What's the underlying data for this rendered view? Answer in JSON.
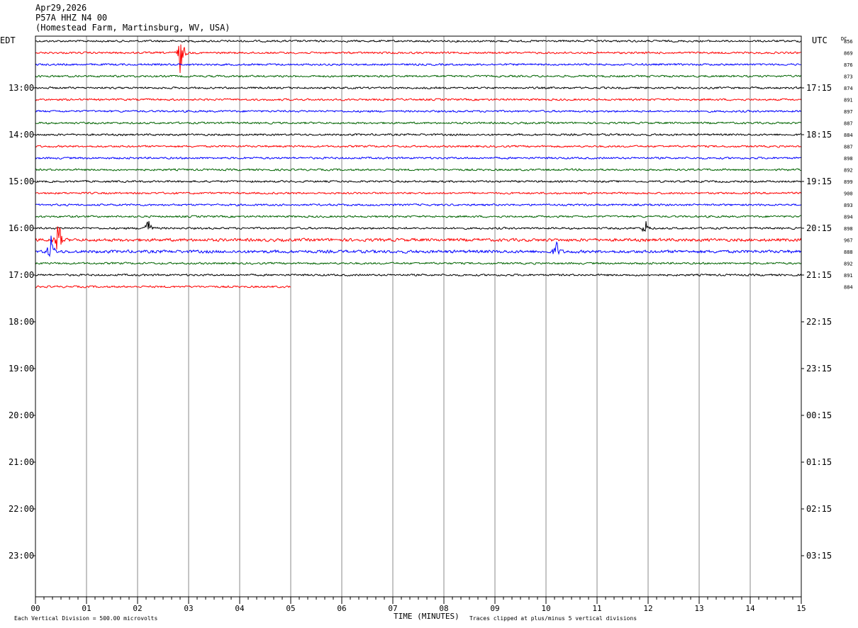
{
  "header": {
    "date": "Apr29,2026",
    "station": "P57A HHZ N4 00",
    "location": "(Homestead Farm, Martinsburg, WV, USA)"
  },
  "labels": {
    "left_tz": "EDT",
    "right_tz": "UTC",
    "dc": "DC",
    "x_title": "TIME (MINUTES)",
    "scale_note": "Each Vertical Division =  500.00 microvolts",
    "clip_note": "Traces clipped at plus/minus 5 vertical divisions"
  },
  "chart_data": {
    "type": "line",
    "title": "P57A HHZ N4 00",
    "xlabel": "TIME (MINUTES)",
    "xlim": [
      0,
      15
    ],
    "x_ticks": [
      "00",
      "01",
      "02",
      "03",
      "04",
      "05",
      "06",
      "07",
      "08",
      "09",
      "10",
      "11",
      "12",
      "13",
      "14",
      "15"
    ],
    "left_hour_labels": [
      "13:00",
      "14:00",
      "15:00",
      "16:00",
      "17:00",
      "18:00",
      "19:00",
      "20:00",
      "21:00",
      "22:00",
      "23:00"
    ],
    "right_hour_labels": [
      "17:15",
      "18:15",
      "19:15",
      "20:15",
      "21:15",
      "22:15",
      "23:15",
      "00:15",
      "01:15",
      "02:15",
      "03:15"
    ],
    "trace_colors": [
      "#000000",
      "#ff0000",
      "#0000ff",
      "#006400"
    ],
    "dc_offsets": [
      856,
      869,
      876,
      873,
      874,
      891,
      897,
      887,
      884,
      887,
      898,
      892,
      899,
      900,
      893,
      894,
      898,
      967,
      888,
      892,
      891,
      884
    ],
    "last_trace_end_minute": 5.0,
    "events": [
      {
        "trace": 1,
        "minute": 2.85,
        "amplitude": 1.0
      },
      {
        "trace": 16,
        "minute": 2.2,
        "amplitude": 0.5
      },
      {
        "trace": 16,
        "minute": 11.95,
        "amplitude": 0.35
      },
      {
        "trace": 17,
        "minute": 0.45,
        "amplitude": 1.0
      },
      {
        "trace": 18,
        "minute": 0.3,
        "amplitude": 0.6
      },
      {
        "trace": 18,
        "minute": 10.2,
        "amplitude": 0.35
      }
    ]
  }
}
